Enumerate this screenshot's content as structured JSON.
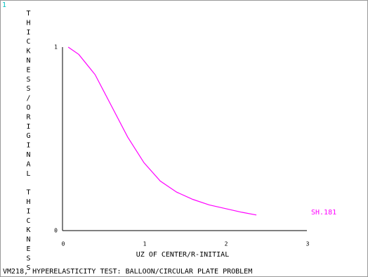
{
  "chart_data": {
    "type": "line",
    "window_label": "1",
    "title": "VM218, HYPERELASTICITY TEST: BALLOON/CIRCULAR PLATE PROBLEM",
    "x_label": "UZ OF CENTER/R-INITIAL",
    "y_label": "THICKNESS/ORIGINAL THICKNESS",
    "x": [
      0.07,
      0.2,
      0.4,
      0.6,
      0.8,
      1.0,
      1.2,
      1.4,
      1.6,
      1.8,
      2.0,
      2.2,
      2.38
    ],
    "series": [
      {
        "name": "SH.181",
        "color": "#ff00ff",
        "values": [
          1.0,
          0.96,
          0.85,
          0.68,
          0.51,
          0.37,
          0.27,
          0.21,
          0.17,
          0.14,
          0.12,
          0.1,
          0.085
        ]
      }
    ],
    "xlim": [
      0,
      3
    ],
    "ylim": [
      0,
      1
    ],
    "xticks": [
      0,
      1,
      2,
      3
    ],
    "yticks": [
      0,
      1
    ],
    "grid": false
  }
}
